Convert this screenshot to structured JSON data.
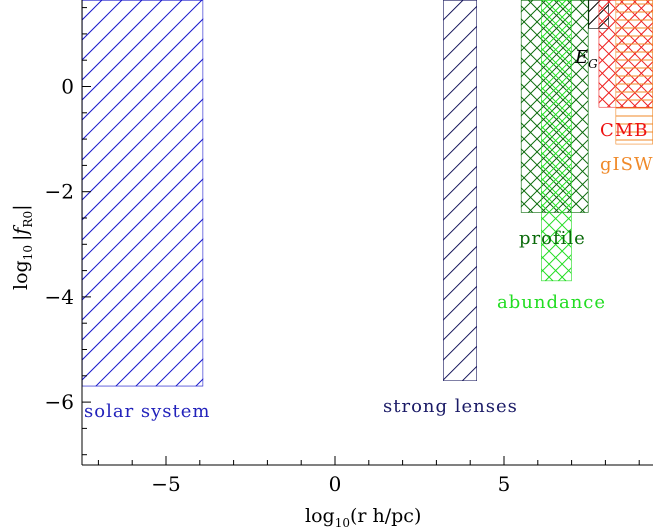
{
  "chart_data": {
    "type": "area",
    "title": "",
    "xlabel": "log₁₀(r h/pc)",
    "ylabel": "log₁₀ |f_R0|",
    "xlim": [
      -7.5,
      9.5
    ],
    "ylim": [
      -7.2,
      1.5
    ],
    "xticks": [
      "−5",
      "0",
      "5"
    ],
    "xtick_values": [
      -5,
      0,
      5
    ],
    "yticks": [
      "0",
      "−2",
      "−4",
      "−6"
    ],
    "ytick_values": [
      0,
      -2,
      -4,
      -6
    ],
    "grid": false,
    "regions": [
      {
        "name": "solar system",
        "x": [
          -7.5,
          -3.9
        ],
        "y_upper": -5.7,
        "color": "#1a1acc",
        "hatch": "diagonal",
        "label_color": "#2222bb"
      },
      {
        "name": "strong lenses",
        "x": [
          3.2,
          4.2
        ],
        "y_upper": -5.6,
        "color": "#14145a",
        "hatch": "diagonal",
        "label_color": "#1a1a66"
      },
      {
        "name": "profile",
        "x": [
          5.5,
          7.5
        ],
        "y_upper": -2.4,
        "color": "#0a6a0a",
        "hatch": "cross",
        "label_color": "#0a6a0a"
      },
      {
        "name": "abundance",
        "x": [
          6.1,
          7.0
        ],
        "y_upper": -3.7,
        "color": "#22dd22",
        "hatch": "cross",
        "label_color": "#22dd22"
      },
      {
        "name": "E_G",
        "x": [
          7.5,
          8.1
        ],
        "y_upper": 1.1,
        "color": "#000000",
        "hatch": "diagonal",
        "label_color": "#000000"
      },
      {
        "name": "CMB",
        "x": [
          7.8,
          9.5
        ],
        "y_upper": -0.4,
        "color": "#ee2222",
        "hatch": "cross",
        "label_color": "#ee1111"
      },
      {
        "name": "gISW",
        "x": [
          8.3,
          9.5
        ],
        "y_upper": -1.1,
        "color": "#f08a2a",
        "hatch": "horizontal",
        "label_color": "#f08a2a"
      }
    ]
  },
  "labels": {
    "solar": "solar system",
    "lenses": "strong lenses",
    "profile": "profile",
    "abundance": "abundance",
    "eg_main": "E",
    "eg_sub": "G",
    "cmb": "CMB",
    "gisw": "gISW",
    "xlabel_main": "log",
    "xlabel_sub": "10",
    "xlabel_rest": "(r h/pc)",
    "ylabel_main": "log",
    "ylabel_sub": "10",
    "ylabel_bar": "|",
    "ylabel_f": "f",
    "ylabel_fsub": "R0",
    "ylabel_bar2": "|"
  },
  "colors": {
    "axis": "#000000",
    "background": "#ffffff"
  }
}
